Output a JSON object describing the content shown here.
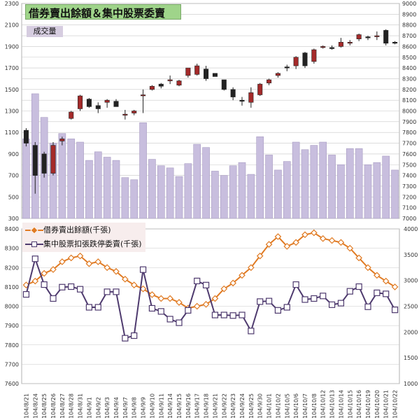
{
  "title": "借券賣出餘額＆集中股票委賣",
  "colors": {
    "up_candle": "#a52a2a",
    "down_candle": "#222222",
    "volume_bar": "#c8bede",
    "short_line": "#e07b24",
    "sell_line": "#4e3a6e",
    "title_bg": "#9fd48a",
    "volume_label_bg": "#d6cde0",
    "legend_bg": "#f7eded"
  },
  "chart_data": [
    {
      "type": "candlestick+bar",
      "volume_label": "成交量",
      "left_axis": {
        "ylim": [
          300,
          2300
        ],
        "ticks": [
          300,
          500,
          700,
          900,
          1100,
          1300,
          1500,
          1700,
          1900,
          2100,
          2300
        ]
      },
      "right_axis": {
        "ylim": [
          7000,
          9000
        ],
        "ticks": [
          7000,
          7100,
          7200,
          7300,
          7400,
          7500,
          7600,
          7700,
          7800,
          7900,
          8000,
          8100,
          8200,
          8300,
          8400,
          8500,
          8600,
          8700,
          8800,
          8900,
          9000
        ]
      },
      "categories": [
        "104/8/21",
        "104/8/24",
        "104/8/25",
        "104/8/26",
        "104/8/27",
        "104/8/28",
        "104/8/31",
        "104/9/1",
        "104/9/2",
        "104/9/3",
        "104/9/4",
        "104/9/7",
        "104/9/8",
        "104/9/9",
        "104/9/10",
        "104/9/11",
        "104/9/14",
        "104/9/15",
        "104/9/16",
        "104/9/17",
        "104/9/18",
        "104/9/21",
        "104/9/22",
        "104/9/23",
        "104/9/24",
        "104/9/25",
        "104/9/30",
        "104/10/1",
        "104/10/2",
        "104/10/5",
        "104/10/6",
        "104/10/7",
        "104/10/8",
        "104/10/12",
        "104/10/13",
        "104/10/14",
        "104/10/15",
        "104/10/16",
        "104/10/19",
        "104/10/20",
        "104/10/21",
        "104/10/22"
      ],
      "volume": [
        1040,
        1460,
        1240,
        1000,
        1090,
        1040,
        1010,
        840,
        920,
        870,
        840,
        680,
        660,
        1190,
        850,
        790,
        770,
        690,
        810,
        990,
        960,
        740,
        700,
        790,
        820,
        710,
        1060,
        890,
        750,
        830,
        1010,
        940,
        980,
        1010,
        890,
        800,
        950,
        950,
        800,
        820,
        880,
        750
      ],
      "ohlc": [
        [
          7820,
          7840,
          7670,
          7700
        ],
        [
          7680,
          7710,
          7230,
          7400
        ],
        [
          7600,
          7620,
          7380,
          7420
        ],
        [
          7420,
          7710,
          7400,
          7680
        ],
        [
          7720,
          7760,
          7680,
          7740
        ],
        [
          7930,
          8000,
          7920,
          7990
        ],
        [
          8020,
          8150,
          8000,
          8140
        ],
        [
          8110,
          8120,
          8030,
          8040
        ],
        [
          8050,
          8080,
          7980,
          8020
        ],
        [
          8080,
          8110,
          8030,
          8100
        ],
        [
          8090,
          8110,
          8040,
          8040
        ],
        [
          7960,
          8010,
          7920,
          7970
        ],
        [
          7980,
          8010,
          7960,
          8000
        ],
        [
          8150,
          8200,
          7980,
          8150
        ],
        [
          8200,
          8240,
          8190,
          8230
        ],
        [
          8250,
          8260,
          8210,
          8230
        ],
        [
          8280,
          8330,
          8250,
          8290
        ],
        [
          8240,
          8290,
          8230,
          8280
        ],
        [
          8330,
          8380,
          8310,
          8400
        ],
        [
          8340,
          8440,
          8330,
          8420
        ],
        [
          8390,
          8420,
          8280,
          8300
        ],
        [
          8350,
          8350,
          8320,
          8320
        ],
        [
          8290,
          8290,
          8190,
          8200
        ],
        [
          8200,
          8220,
          8100,
          8130
        ],
        [
          8100,
          8130,
          8050,
          8090
        ],
        [
          8080,
          8220,
          8030,
          8170
        ],
        [
          8150,
          8260,
          8140,
          8250
        ],
        [
          8260,
          8300,
          8240,
          8290
        ],
        [
          8330,
          8360,
          8310,
          8350
        ],
        [
          8410,
          8430,
          8370,
          8400
        ],
        [
          8420,
          8510,
          8390,
          8500
        ],
        [
          8540,
          8550,
          8400,
          8420
        ],
        [
          8460,
          8580,
          8440,
          8570
        ],
        [
          8600,
          8610,
          8580,
          8600
        ],
        [
          8590,
          8610,
          8570,
          8580
        ],
        [
          8600,
          8680,
          8590,
          8640
        ],
        [
          8630,
          8660,
          8610,
          8640
        ],
        [
          8670,
          8720,
          8650,
          8710
        ],
        [
          8690,
          8700,
          8660,
          8680
        ],
        [
          8700,
          8740,
          8660,
          8700
        ],
        [
          8750,
          8760,
          8610,
          8630
        ],
        [
          8640,
          8650,
          8620,
          8630
        ]
      ]
    },
    {
      "type": "line",
      "left_axis": {
        "ylim": [
          7600,
          8400
        ],
        "ticks": [
          7600,
          7700,
          7800,
          7900,
          8000,
          8100,
          8200,
          8300,
          8400
        ]
      },
      "right_axis": {
        "ylim": [
          1000,
          4000
        ],
        "ticks": [
          1000,
          1500,
          2000,
          2500,
          3000,
          3500,
          4000
        ]
      },
      "series": [
        {
          "name": "借券賣出餘額(千張)",
          "axis": "left",
          "marker": "diamond",
          "values": [
            8110,
            8130,
            8170,
            8190,
            8230,
            8250,
            8260,
            8220,
            8230,
            8200,
            8180,
            8140,
            8110,
            8090,
            8060,
            8040,
            8040,
            8020,
            7990,
            8000,
            8010,
            8040,
            8090,
            8120,
            8160,
            8200,
            8260,
            8320,
            8360,
            8310,
            8330,
            8370,
            8380,
            8350,
            8340,
            8330,
            8300,
            8250,
            8200,
            8160,
            8130,
            8100
          ]
        },
        {
          "name": "集中股票扣張跌停委賣(千張)",
          "axis": "right",
          "marker": "square",
          "values": [
            2730,
            3420,
            2920,
            2650,
            2870,
            2880,
            2830,
            2480,
            2480,
            2780,
            2780,
            1880,
            1930,
            3210,
            2460,
            2400,
            2250,
            2180,
            2420,
            2990,
            2910,
            2330,
            2330,
            2320,
            2330,
            2020,
            2590,
            2600,
            2420,
            2480,
            2920,
            2630,
            2650,
            2700,
            2530,
            2560,
            2790,
            2880,
            2490,
            2760,
            2740,
            2430
          ]
        }
      ]
    }
  ],
  "legend": [
    {
      "label": "借券賣出餘額(千張)"
    },
    {
      "label": "集中股票扣張跌停委賣(千張)"
    }
  ]
}
